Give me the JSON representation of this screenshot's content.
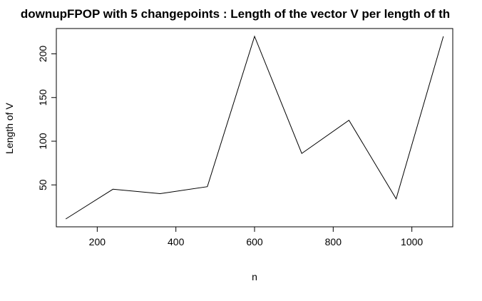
{
  "chart_data": {
    "type": "line",
    "title": "downupFPOP with 5 changepoints : Length of the vector V per length of th",
    "xlabel": "n",
    "ylabel": "Length of V",
    "x_ticks": [
      200,
      400,
      600,
      800,
      1000
    ],
    "y_ticks": [
      50,
      100,
      150,
      200
    ],
    "xlim": [
      96,
      1104
    ],
    "ylim": [
      2,
      229
    ],
    "grid": false,
    "legend": "none",
    "series": [
      {
        "x": [
          120,
          240,
          360,
          480,
          600,
          720,
          840,
          960,
          1080
        ],
        "values": [
          11,
          45,
          40,
          48,
          220,
          86,
          124,
          34,
          220
        ]
      }
    ],
    "line_color": "#000000"
  }
}
